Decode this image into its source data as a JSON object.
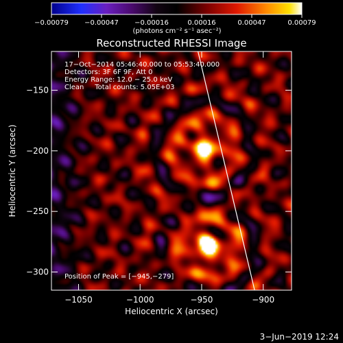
{
  "chart_data": {
    "type": "heatmap",
    "title": "Reconstructed RHESSI Image",
    "xlabel": "Heliocentric X (arcsec)",
    "ylabel": "Heliocentric Y (arcsec)",
    "xlim": [
      -1072,
      -877
    ],
    "ylim": [
      -315,
      -118
    ],
    "x_ticks": [
      -1050,
      -1000,
      -950,
      -900
    ],
    "y_ticks": [
      -150,
      -200,
      -250,
      -300
    ],
    "x_tick_labels": [
      "−1050",
      "−1000",
      "−950",
      "−900"
    ],
    "y_tick_labels": [
      "−150",
      "−200",
      "−250",
      "−300"
    ],
    "colorbar": {
      "min": -0.00079,
      "max": 0.00079,
      "tick_labels": [
        "−0.00079",
        "−0.00047",
        "−0.00016",
        "0.00016",
        "0.00047",
        "0.00079"
      ],
      "unit_label": "(photons cm⁻² s⁻¹ asec⁻²)",
      "colormap": "rainbow-to-hot"
    },
    "annotations": [
      "17−Oct−2014 05:46:40.000 to 05:53:40.000",
      "Detectors: 3F 6F 9F, Att 0",
      "Energy Range: 12.0 − 25.0 keV",
      "Clean     Total counts: 5.05E+03"
    ],
    "peak_label": "Position of Peak = [−945,−279]",
    "peak": {
      "x": -945,
      "y": -279
    },
    "sources": [
      {
        "x": -948,
        "y": -198,
        "strength": 0.85
      },
      {
        "x": -945,
        "y": -279,
        "strength": 1.0
      }
    ],
    "limb": [
      {
        "x": -953,
        "y": -118
      },
      {
        "x": -907,
        "y": -315
      }
    ],
    "grid": false
  },
  "footer": {
    "timestamp": "3−Jun−2019 12:24"
  }
}
